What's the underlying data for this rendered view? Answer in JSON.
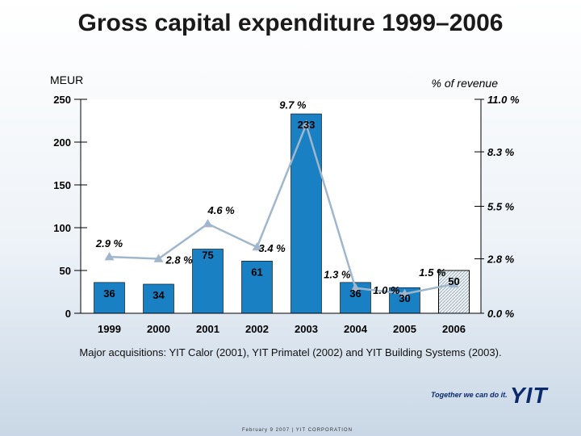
{
  "title": "Gross capital expenditure 1999–2006",
  "footnote": "Major acquisitions: YIT Calor (2001), YIT Primatel (2002) and YIT Building Systems (2003).",
  "brand": {
    "slogan": "Together we can do it.",
    "logo": "YIT"
  },
  "footer": {
    "text": "February 9 2007 | YIT CORPORATION"
  },
  "colors": {
    "bar": "#1a80c4",
    "bar_forecast": "#eaf1f5",
    "line": "#9fb6cc",
    "axis": "#000000"
  },
  "chart_data": {
    "type": "bar",
    "title": "Gross capital expenditure 1999–2006",
    "ylabel": "MEUR",
    "y2label": "% of revenue",
    "categories": [
      "1999",
      "2000",
      "2001",
      "2002",
      "2003",
      "2004",
      "2005",
      "2006"
    ],
    "ylim": [
      0,
      250
    ],
    "yticks": [
      "0",
      "50",
      "100",
      "150",
      "200",
      "250"
    ],
    "y2lim": [
      0,
      11
    ],
    "y2ticks": [
      "0.0 %",
      "2.8 %",
      "5.5 %",
      "8.3 %",
      "11.0 %"
    ],
    "series": [
      {
        "name": "Gross capital expenditure, MEUR",
        "type": "bar",
        "values": [
          36,
          34,
          75,
          61,
          233,
          36,
          30,
          50
        ],
        "labels": [
          "36",
          "34",
          "75",
          "61",
          "233",
          "36",
          "30",
          "50"
        ],
        "forecast_index": 7
      },
      {
        "name": "% of revenue",
        "type": "line",
        "axis": "right",
        "values": [
          2.9,
          2.8,
          4.6,
          3.4,
          9.7,
          1.3,
          1.0,
          1.5
        ],
        "labels": [
          "2.9 %",
          "2.8 %",
          "4.6 %",
          "3.4 %",
          "9.7 %",
          "1.3 %",
          "1.0 %",
          "1.5 %"
        ]
      }
    ]
  }
}
